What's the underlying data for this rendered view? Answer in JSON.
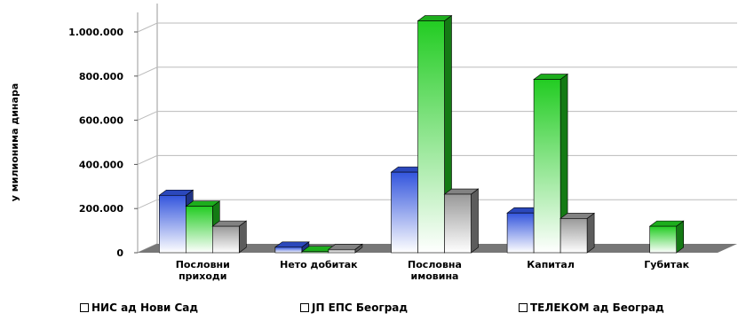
{
  "chart_data": {
    "type": "bar",
    "style": "3d-clustered",
    "title": "",
    "ylabel": "у милионима динара",
    "xlabel": "",
    "ylim": [
      0,
      1000000
    ],
    "yticks": [
      "0",
      "200.000",
      "400.000",
      "600.000",
      "800.000",
      "1.000.000"
    ],
    "grid": true,
    "legend_position": "bottom",
    "categories": [
      "Пословни приходи",
      "Нето добитак",
      "Пословна имовина",
      "Капитал",
      "Губитак"
    ],
    "series": [
      {
        "name": "НИС ад Нови Сад",
        "color": "#3355dd",
        "values": [
          260000,
          25000,
          365000,
          180000,
          0
        ]
      },
      {
        "name": "TELEKOM ad Beograd",
        "color": "#22cc22",
        "values": [
          210000,
          5000,
          1050000,
          785000,
          120000
        ]
      },
      {
        "name": "ЈП ЕПС Београд",
        "color": "#999999",
        "values": [
          120000,
          15000,
          265000,
          155000,
          0
        ]
      }
    ]
  },
  "legend": [
    {
      "label": "НИС ад Нови Сад"
    },
    {
      "label": "ЈП ЕПС Београд"
    },
    {
      "label": "ТЕЛЕКОМ ад Београд"
    }
  ],
  "colors": {
    "wall_grid": "#bbbbbb",
    "floor": "#777777",
    "axis": "#555555"
  }
}
